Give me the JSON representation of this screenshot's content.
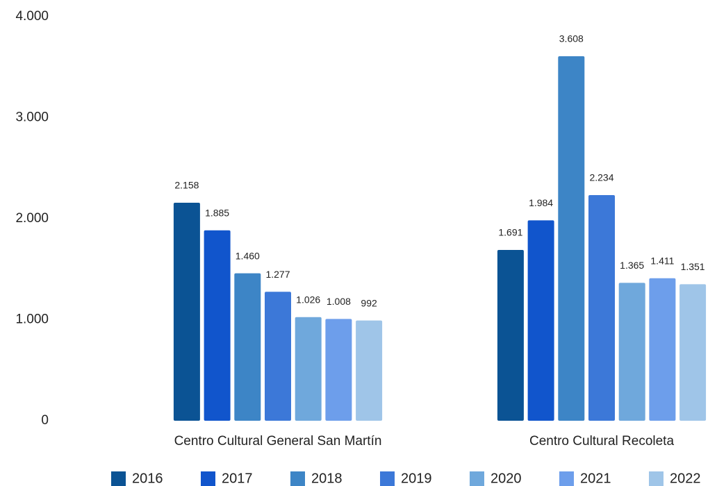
{
  "chart_data": {
    "type": "bar",
    "categories": [
      "Centro Cultural General San Martín",
      "Centro Cultural Recoleta"
    ],
    "series": [
      {
        "name": "2016",
        "color": "#0b5394",
        "values": [
          2158,
          1691
        ],
        "value_labels": [
          "2.158",
          "1.691"
        ]
      },
      {
        "name": "2017",
        "color": "#1155cc",
        "values": [
          1885,
          1984
        ],
        "value_labels": [
          "1.885",
          "1.984"
        ]
      },
      {
        "name": "2018",
        "color": "#3d85c6",
        "values": [
          1460,
          3608
        ],
        "value_labels": [
          "1.460",
          "3.608"
        ]
      },
      {
        "name": "2019",
        "color": "#3c78d8",
        "values": [
          1277,
          2234
        ],
        "value_labels": [
          "1.277",
          "2.234"
        ]
      },
      {
        "name": "2020",
        "color": "#6fa8dc",
        "values": [
          1026,
          1365
        ],
        "value_labels": [
          "1.026",
          "1.365"
        ]
      },
      {
        "name": "2021",
        "color": "#6d9eeb",
        "values": [
          1008,
          1411
        ],
        "value_labels": [
          "1.008",
          "1.411"
        ]
      },
      {
        "name": "2022",
        "color": "#9fc5e8",
        "values": [
          992,
          1351
        ],
        "value_labels": [
          "992",
          "1.351"
        ]
      }
    ],
    "ylim": [
      0,
      4000
    ],
    "yticks": [
      0,
      {
        "value": 1000,
        "label": "1.000"
      },
      {
        "value": 2000,
        "label": "2.000"
      },
      {
        "value": 3000,
        "label": "3.000"
      },
      {
        "value": 4000,
        "label": "4.000"
      }
    ],
    "grid": false,
    "legend": "bottom"
  }
}
